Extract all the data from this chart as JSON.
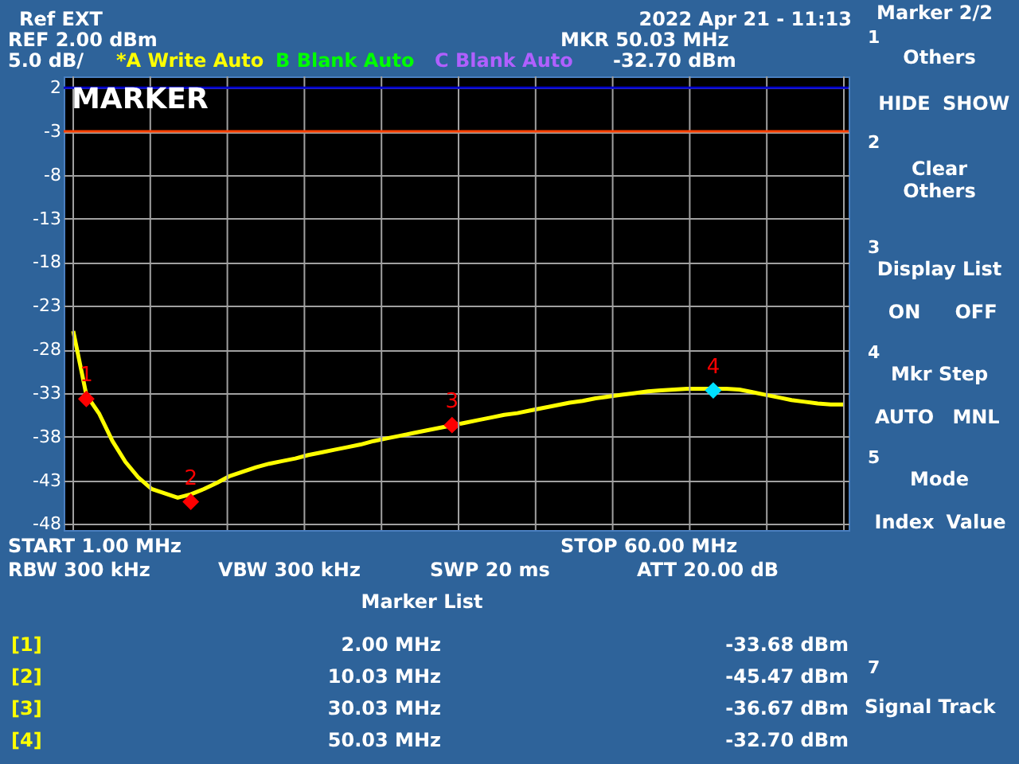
{
  "chart_data": {
    "type": "line",
    "title": "MARKER",
    "categories": [
      null,
      null,
      null,
      null,
      null,
      null,
      null,
      null,
      null,
      null,
      null,
      null,
      null,
      null,
      null,
      null,
      null,
      null,
      null,
      null,
      null,
      null,
      null,
      null,
      null,
      null,
      null,
      null,
      null,
      null,
      null,
      null,
      null,
      null,
      null,
      null,
      null,
      null,
      null,
      null,
      null,
      null,
      null,
      null,
      null,
      null,
      null,
      null,
      null,
      null,
      null,
      null,
      null,
      null,
      null,
      null,
      null,
      null,
      null,
      null
    ],
    "series": [
      {
        "color": "#ffff00",
        "values": [
          -25.9,
          -33.2,
          -35.4,
          -38.5,
          -40.9,
          -42.7,
          -44,
          -44.5,
          -45,
          -44.6,
          -44,
          -43.3,
          -42.5,
          -42,
          -41.5,
          -41.1,
          -40.8,
          -40.5,
          -40.1,
          -39.8,
          -39.5,
          -39.2,
          -38.9,
          -38.5,
          -38.2,
          -37.9,
          -37.6,
          -37.3,
          -37,
          -36.7,
          -36.4,
          -36.1,
          -35.8,
          -35.5,
          -35.3,
          -35,
          -34.7,
          -34.4,
          -34.1,
          -33.9,
          -33.6,
          -33.4,
          -33.2,
          -33,
          -32.8,
          -32.7,
          -32.6,
          -32.5,
          -32.5,
          -32.5,
          -32.5,
          -32.6,
          -32.9,
          -33.2,
          -33.5,
          -33.8,
          -34,
          -34.2,
          -34.3,
          -34.3
        ]
      },
      {
        "type": "scatter",
        "marker": "diamond",
        "colors": [
          null,
          "#ff0000",
          null,
          null,
          null,
          null,
          null,
          null,
          null,
          "#ff0000",
          null,
          null,
          null,
          null,
          null,
          null,
          null,
          null,
          null,
          null,
          null,
          null,
          null,
          null,
          null,
          null,
          null,
          null,
          null,
          "#ff0000",
          null,
          null,
          null,
          null,
          null,
          null,
          null,
          null,
          null,
          null,
          null,
          null,
          null,
          null,
          null,
          null,
          null,
          null,
          null,
          "#00e0ff",
          null,
          null,
          null,
          null,
          null,
          null,
          null,
          null,
          null,
          null
        ],
        "values": [
          null,
          -33.68,
          null,
          null,
          null,
          null,
          null,
          null,
          null,
          -45.47,
          null,
          null,
          null,
          null,
          null,
          null,
          null,
          null,
          null,
          null,
          null,
          null,
          null,
          null,
          null,
          null,
          null,
          null,
          null,
          -36.67,
          null,
          null,
          null,
          null,
          null,
          null,
          null,
          null,
          null,
          null,
          null,
          null,
          null,
          null,
          null,
          null,
          null,
          null,
          null,
          -32.7,
          null,
          null,
          null,
          null,
          null,
          null,
          null,
          null,
          null,
          null
        ]
      }
    ],
    "ylim": [
      -48.7,
      3.3
    ],
    "yticks": [
      2,
      -3,
      -8,
      -13,
      -18,
      -23,
      -28,
      -33,
      -38,
      -43,
      -48
    ],
    "tick_labels": "y",
    "grid": true,
    "ref_lines": [
      {
        "axis": "y",
        "value": 2,
        "color": "#0000cc"
      },
      {
        "axis": "y",
        "value": -3,
        "color": "#ff4000"
      }
    ],
    "annotations": [
      "Ref EXT",
      "REF  2.00 dBm",
      "5.0 dB/",
      "*A Write Auto",
      "B Blank Auto",
      "C Blank Auto",
      "2022 Apr 21 - 11:13",
      "MKR 50.03 MHz",
      "-32.70 dBm",
      "START  1.00 MHz",
      "STOP 60.00 MHz",
      "RBW  300 kHz",
      "VBW  300 kHz",
      "SWP  20 ms",
      "ATT 20.00 dB",
      "Marker List",
      "[1]",
      "2.00 MHz",
      "-33.68 dBm",
      "[2]",
      "10.03 MHz",
      "-45.47 dBm",
      "[3]",
      "30.03 MHz",
      "-36.67 dBm",
      "[4]",
      "50.03 MHz",
      "-32.70 dBm",
      "Marker 2/2",
      "1",
      "Others",
      "HIDE",
      "SHOW",
      "2",
      "Clear",
      "Others",
      "3",
      "Display List",
      "ON",
      "OFF",
      "4",
      "Mkr Step",
      "AUTO",
      "MNL",
      "5",
      "Mode",
      "Index",
      "Value",
      "7",
      "Signal Track",
      {
        "text": "1",
        "y": -33.68
      },
      {
        "text": "2",
        "y": -45.47
      },
      {
        "text": "3",
        "y": -36.67
      },
      {
        "text": "4",
        "y": -32.7
      }
    ]
  }
}
